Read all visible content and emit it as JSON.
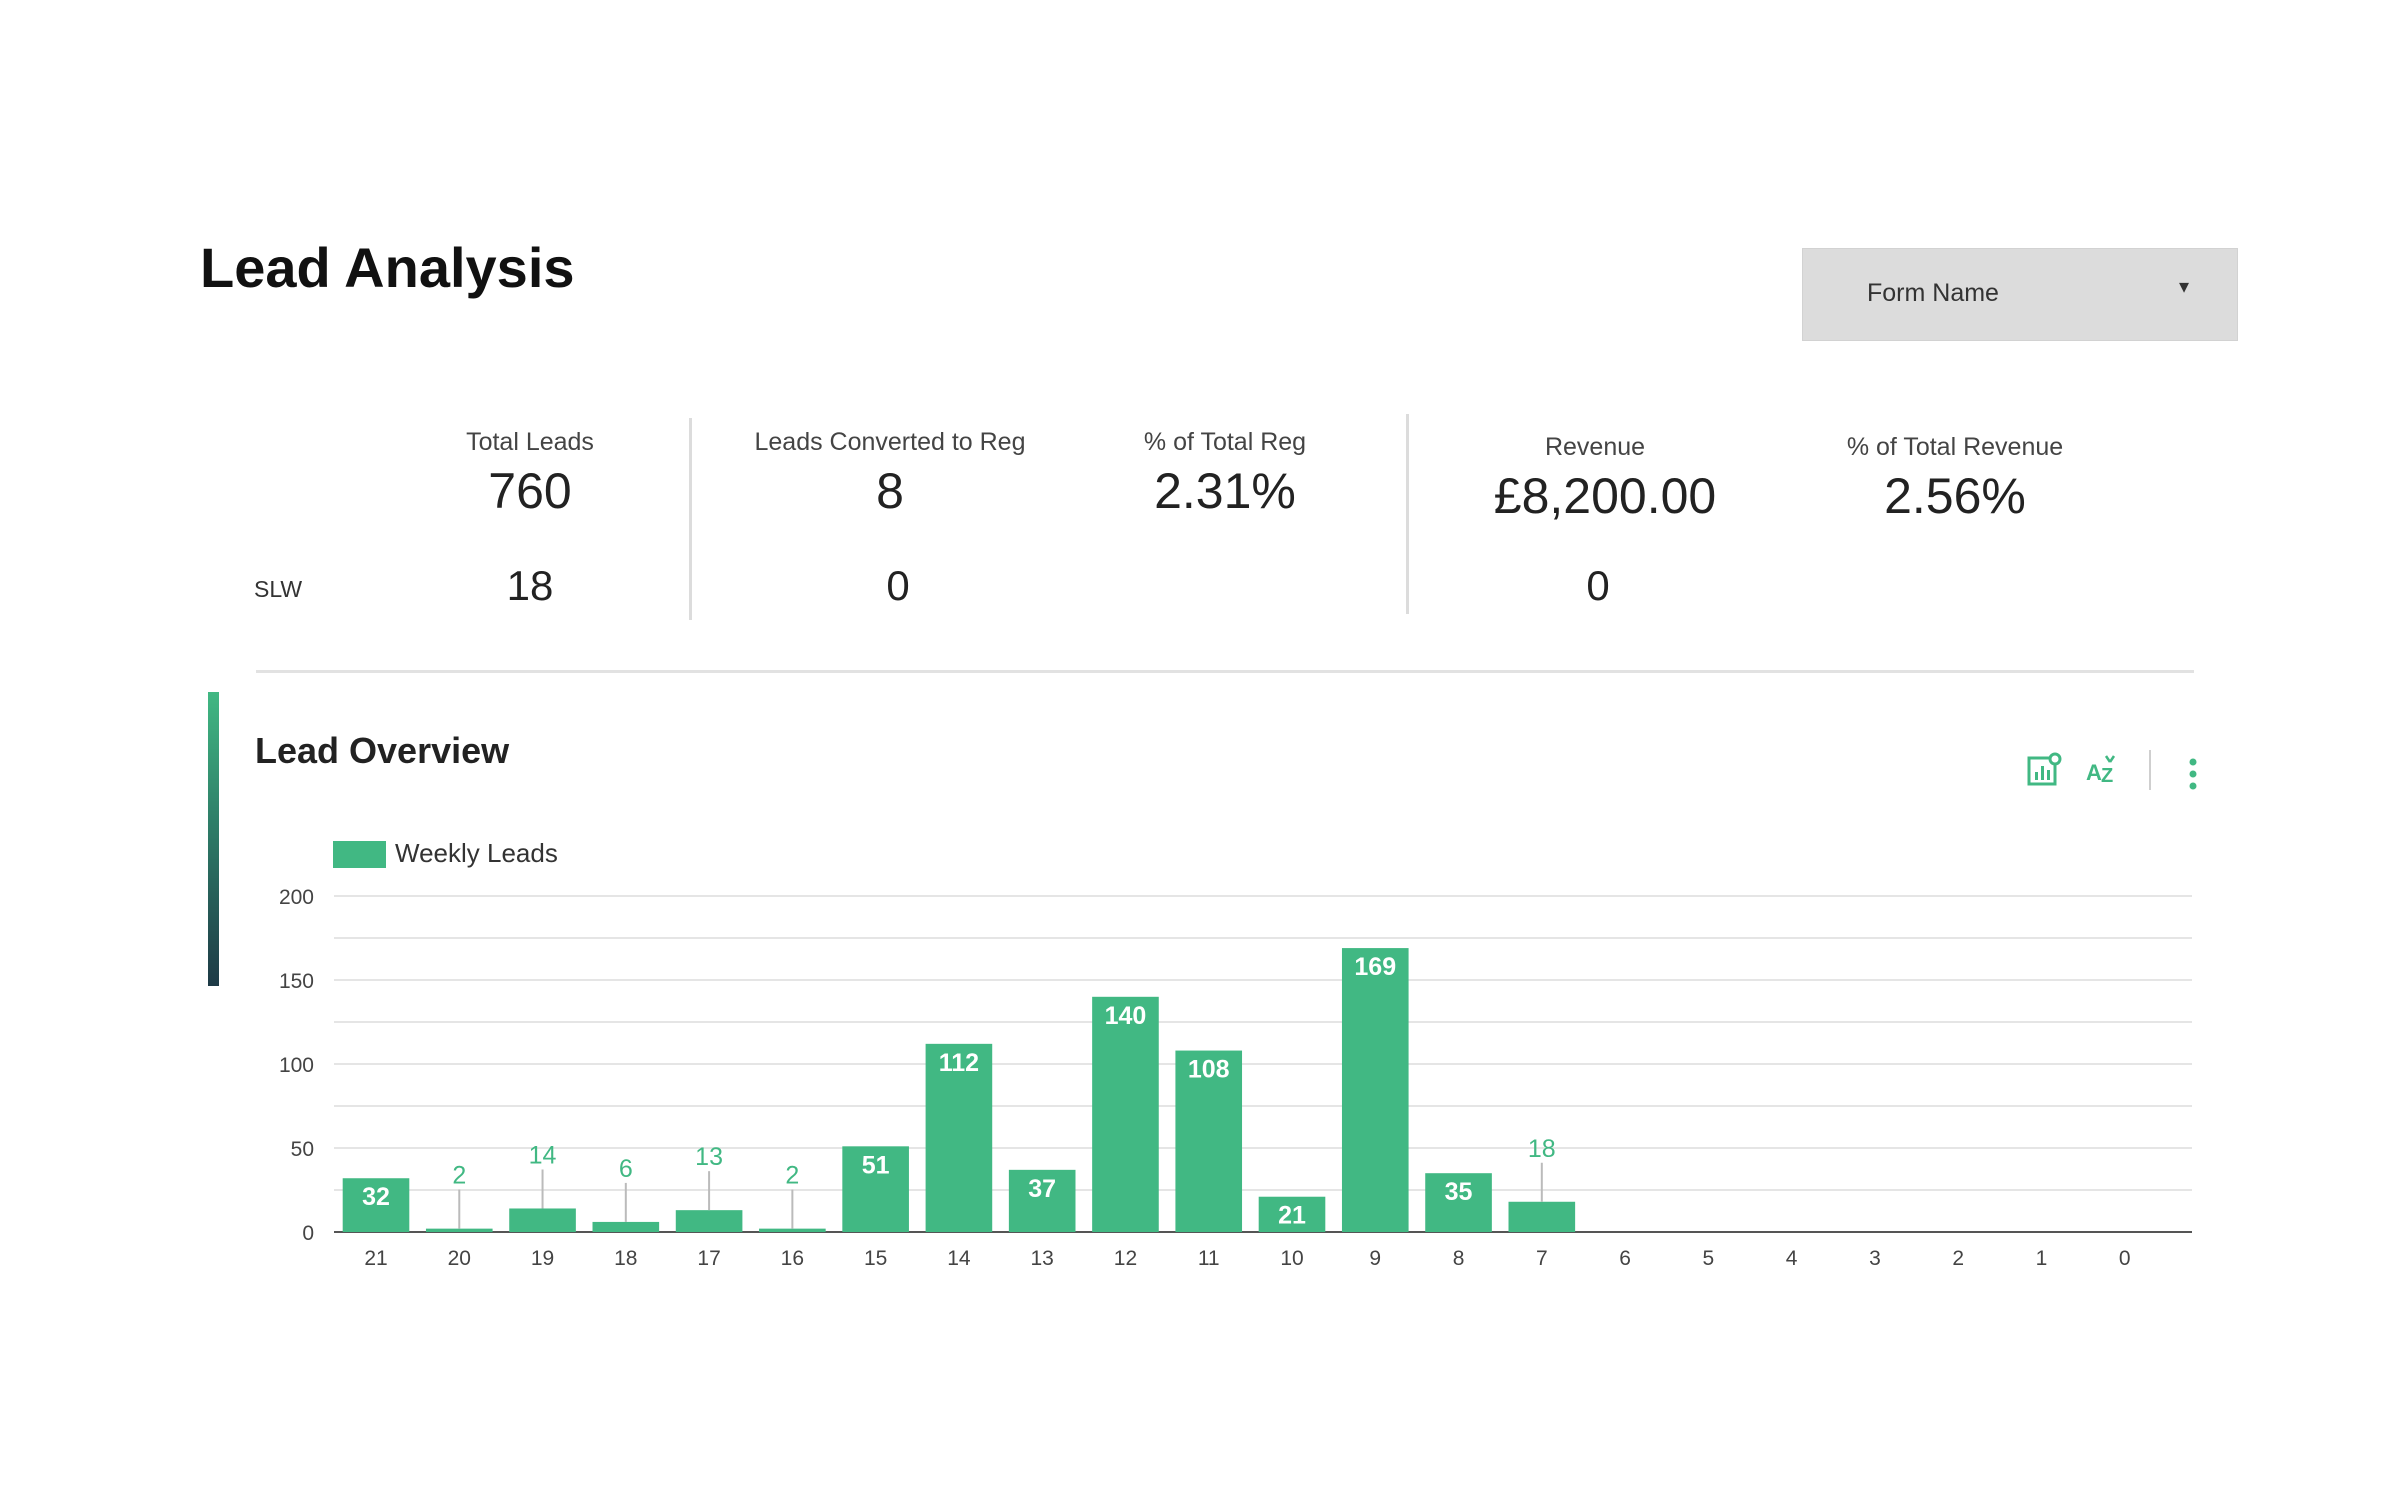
{
  "page": {
    "title": "Lead Analysis"
  },
  "filter": {
    "label": "Form Name",
    "caret": "▾"
  },
  "kpis": {
    "slw_label": "SLW",
    "total_leads": {
      "label": "Total Leads",
      "value": "760",
      "slw": "18"
    },
    "converted": {
      "label": "Leads Converted to Reg",
      "value": "8",
      "slw": "0"
    },
    "pct_total_reg": {
      "label": "% of Total Reg",
      "value": "2.31%"
    },
    "revenue": {
      "label": "Revenue",
      "value": "£8,200.00",
      "slw": "0"
    },
    "pct_total_revenue": {
      "label": "% of Total Revenue",
      "value": "2.56%"
    }
  },
  "section": {
    "title": "Lead Overview"
  },
  "toolbar": {
    "icons": [
      "chart-settings-icon",
      "sort-az-icon",
      "more-vert-icon"
    ]
  },
  "colors": {
    "accent": "#41b883",
    "label_dark": "#ffffff",
    "grid": "#e5e5e5"
  },
  "chart_data": {
    "type": "bar",
    "categories": [
      "21",
      "20",
      "19",
      "18",
      "17",
      "16",
      "15",
      "14",
      "13",
      "12",
      "11",
      "10",
      "9",
      "8",
      "7",
      "6",
      "5",
      "4",
      "3",
      "2",
      "1",
      "0"
    ],
    "series": [
      {
        "name": "Weekly Leads",
        "values": [
          32,
          2,
          14,
          6,
          13,
          2,
          51,
          112,
          37,
          140,
          108,
          21,
          169,
          35,
          18,
          0,
          0,
          0,
          0,
          0,
          0,
          0
        ]
      }
    ],
    "y_ticks": [
      "0",
      "50",
      "100",
      "150",
      "200"
    ],
    "ylim": [
      0,
      200
    ],
    "grid": true,
    "legend": "top-left"
  }
}
